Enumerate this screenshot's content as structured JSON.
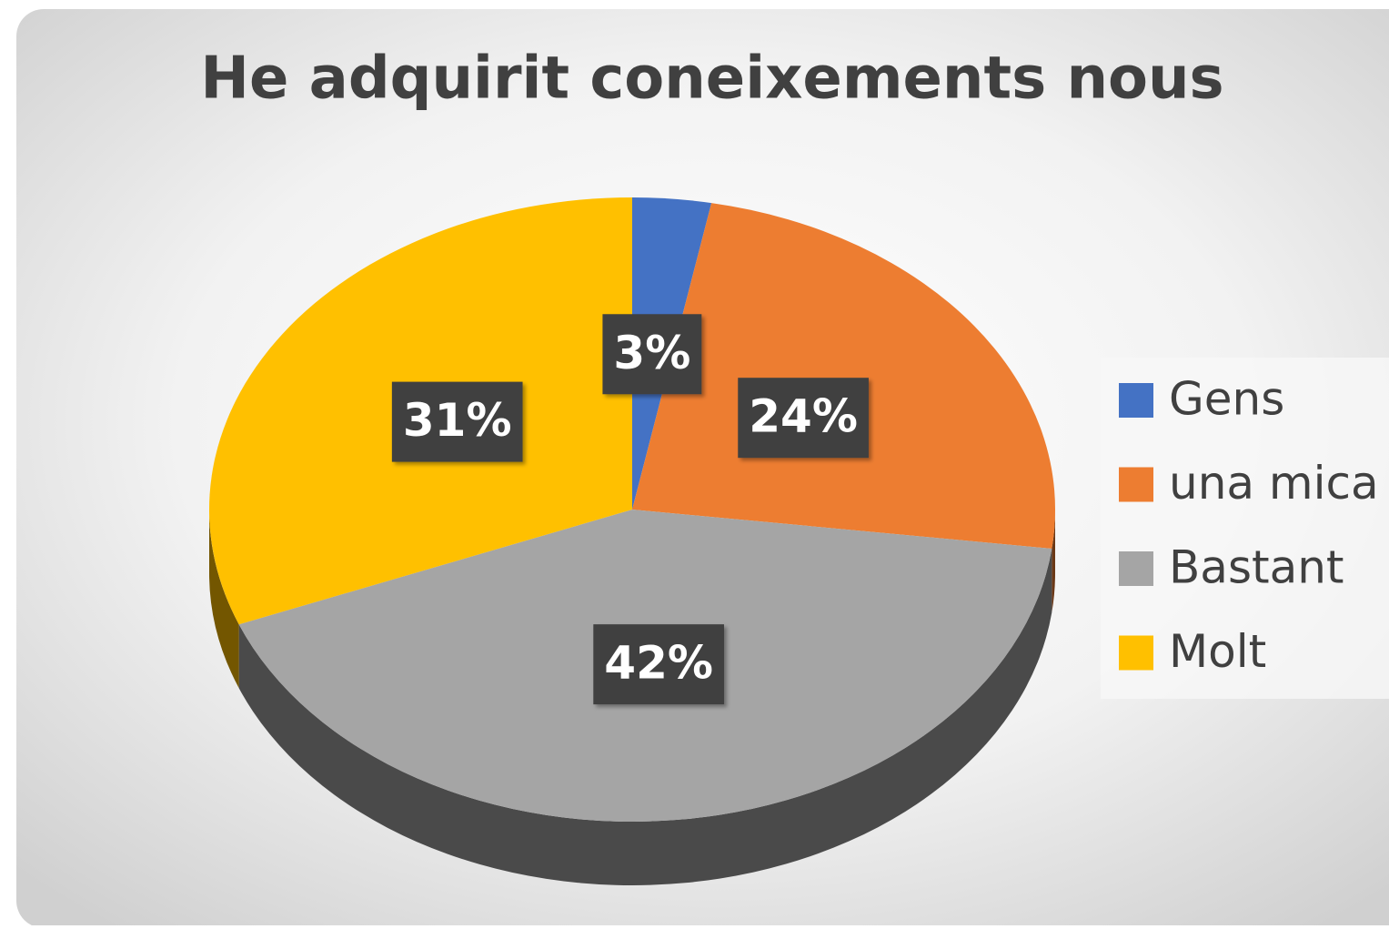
{
  "chart_data": {
    "type": "pie",
    "title": "He adquirit coneixements nous",
    "categories": [
      "Gens",
      "una mica",
      "Bastant",
      "Molt"
    ],
    "values": [
      3,
      24,
      42,
      31
    ],
    "value_labels": [
      "3%",
      "24%",
      "42%",
      "31%"
    ],
    "colors": [
      "#4472c4",
      "#ed7d31",
      "#a5a5a5",
      "#ffc000"
    ],
    "legend": "right"
  }
}
